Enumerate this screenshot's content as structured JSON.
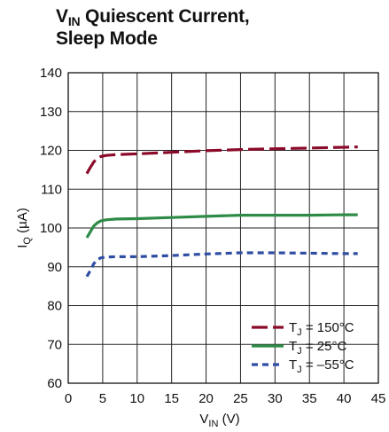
{
  "chart_data": {
    "type": "line",
    "title": {
      "line1_main": "V",
      "line1_sub": "IN",
      "line1_rest": " Quiescent Current,",
      "line2": "Sleep Mode"
    },
    "xlabel": {
      "main": "V",
      "sub": "IN",
      "rest": " (V)"
    },
    "ylabel": {
      "main": "I",
      "sub": "Q",
      "rest": " (µA)"
    },
    "xlim": [
      0,
      45
    ],
    "ylim": [
      60,
      140
    ],
    "x_ticks": [
      0,
      5,
      10,
      15,
      20,
      25,
      30,
      35,
      40,
      45
    ],
    "y_ticks": [
      60,
      70,
      80,
      90,
      100,
      110,
      120,
      130,
      140
    ],
    "x_tick_labels": [
      "0",
      "5",
      "10",
      "15",
      "20",
      "25",
      "30",
      "35",
      "40",
      "45"
    ],
    "y_tick_labels": [
      "60",
      "70",
      "80",
      "90",
      "100",
      "110",
      "120",
      "130",
      "140"
    ],
    "grid": true,
    "legend_position": "bottom-right",
    "series": [
      {
        "name": "150°C",
        "legend": {
          "main": "T",
          "sub": "J",
          "rest": " = 150°C"
        },
        "color": "#8b0a2a",
        "dash": "long-dash",
        "x": [
          2.7,
          3.2,
          3.7,
          4.2,
          4.7,
          5.5,
          7,
          10,
          15,
          20,
          25,
          30,
          35,
          40,
          42
        ],
        "y": [
          114,
          115.6,
          117,
          117.9,
          118.4,
          118.7,
          118.9,
          119.1,
          119.5,
          119.9,
          120.2,
          120.4,
          120.6,
          120.8,
          120.9
        ]
      },
      {
        "name": "25°C",
        "legend": {
          "main": "T",
          "sub": "J",
          "rest": " = 25°C"
        },
        "color": "#2e8b47",
        "dash": "solid",
        "x": [
          2.7,
          3.2,
          3.7,
          4.2,
          4.7,
          5.5,
          7,
          10,
          15,
          20,
          25,
          30,
          35,
          40,
          42
        ],
        "y": [
          97.5,
          99,
          100.5,
          101.3,
          101.8,
          102.1,
          102.3,
          102.4,
          102.7,
          103,
          103.3,
          103.3,
          103.3,
          103.4,
          103.4
        ]
      },
      {
        "name": "−55°C",
        "legend": {
          "main": "T",
          "sub": "J",
          "rest": " = –55°C"
        },
        "color": "#2f4ea3",
        "dash": "short-dash",
        "x": [
          2.7,
          3.2,
          3.7,
          4.2,
          4.7,
          5.5,
          7,
          10,
          15,
          20,
          25,
          30,
          35,
          40,
          42
        ],
        "y": [
          87.5,
          89,
          90.8,
          91.8,
          92.3,
          92.5,
          92.6,
          92.6,
          92.9,
          93.3,
          93.6,
          93.6,
          93.5,
          93.4,
          93.4
        ]
      }
    ]
  }
}
